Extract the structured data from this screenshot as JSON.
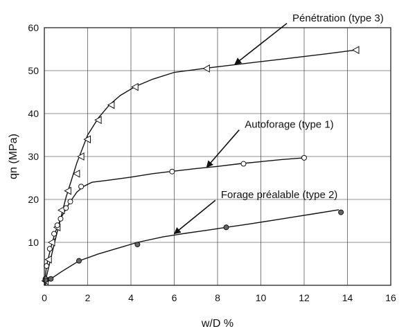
{
  "chart_data": {
    "type": "scatter",
    "title": "",
    "xlabel": "w/D %",
    "ylabel": "qn (MPa)",
    "xlim": [
      0,
      16
    ],
    "ylim": [
      0,
      60
    ],
    "x_ticks": [
      0,
      2,
      4,
      6,
      8,
      10,
      12,
      14,
      16
    ],
    "y_ticks": [
      10,
      20,
      30,
      40,
      50,
      60
    ],
    "grid": true,
    "legend": "none",
    "series": [
      {
        "name": "Pénétration (type 3)",
        "marker": "left-triangle",
        "points": [
          [
            0.05,
            1.0
          ],
          [
            0.2,
            6.0
          ],
          [
            0.35,
            10.0
          ],
          [
            0.6,
            13.5
          ],
          [
            0.8,
            17.5
          ],
          [
            1.1,
            22.0
          ],
          [
            1.5,
            26.0
          ],
          [
            1.7,
            30.0
          ],
          [
            2.0,
            34.0
          ],
          [
            2.5,
            38.5
          ],
          [
            3.1,
            42.0
          ],
          [
            4.2,
            46.2
          ],
          [
            7.5,
            50.5
          ],
          [
            14.4,
            54.8
          ]
        ],
        "curve": [
          [
            0,
            0
          ],
          [
            0.5,
            10.5
          ],
          [
            1.0,
            20.5
          ],
          [
            1.5,
            28.5
          ],
          [
            2.0,
            35.0
          ],
          [
            2.5,
            39.0
          ],
          [
            3.0,
            42.0
          ],
          [
            3.5,
            44.2
          ],
          [
            4.2,
            46.3
          ],
          [
            5.0,
            48.0
          ],
          [
            6.0,
            49.6
          ],
          [
            7.5,
            50.6
          ],
          [
            9.0,
            51.5
          ],
          [
            11.0,
            52.7
          ],
          [
            13.0,
            53.9
          ],
          [
            14.4,
            54.8
          ]
        ]
      },
      {
        "name": "Autoforage (type 1)",
        "marker": "circle",
        "points": [
          [
            0.05,
            1.5
          ],
          [
            0.1,
            4.5
          ],
          [
            0.25,
            8.5
          ],
          [
            0.45,
            12.0
          ],
          [
            0.6,
            14.0
          ],
          [
            0.75,
            15.5
          ],
          [
            1.0,
            18.0
          ],
          [
            1.2,
            19.5
          ],
          [
            1.7,
            23.0
          ],
          [
            5.9,
            26.5
          ],
          [
            9.2,
            28.3
          ],
          [
            12.0,
            29.7
          ]
        ],
        "curve": [
          [
            0,
            0
          ],
          [
            0.1,
            4.5
          ],
          [
            0.3,
            8.8
          ],
          [
            0.5,
            12.3
          ],
          [
            0.8,
            16.0
          ],
          [
            1.2,
            19.5
          ],
          [
            1.5,
            21.7
          ],
          [
            1.8,
            23.0
          ],
          [
            2.2,
            24.0
          ],
          [
            3.0,
            24.5
          ],
          [
            4.0,
            25.2
          ],
          [
            5.0,
            26.0
          ],
          [
            6.0,
            26.6
          ],
          [
            7.0,
            27.2
          ],
          [
            8.0,
            27.7
          ],
          [
            9.0,
            28.3
          ],
          [
            10.0,
            28.8
          ],
          [
            11.0,
            29.3
          ],
          [
            12.0,
            29.7
          ]
        ]
      },
      {
        "name": "Forage préalable (type 2)",
        "marker": "filled-circle",
        "points": [
          [
            0.05,
            1.2
          ],
          [
            0.3,
            1.5
          ],
          [
            1.6,
            5.7
          ],
          [
            4.3,
            9.5
          ],
          [
            8.4,
            13.5
          ],
          [
            13.7,
            17.0
          ]
        ],
        "curve": [
          [
            0,
            0
          ],
          [
            0.3,
            1.5
          ],
          [
            0.8,
            3.2
          ],
          [
            1.6,
            5.7
          ],
          [
            2.5,
            7.3
          ],
          [
            3.5,
            8.8
          ],
          [
            4.3,
            10.0
          ],
          [
            5.5,
            11.3
          ],
          [
            6.5,
            12.1
          ],
          [
            7.5,
            12.8
          ],
          [
            8.4,
            13.5
          ],
          [
            9.5,
            14.3
          ],
          [
            10.5,
            15.1
          ],
          [
            11.5,
            15.9
          ],
          [
            12.5,
            16.7
          ],
          [
            13.6,
            17.6
          ]
        ]
      }
    ],
    "annotations": [
      {
        "text": "Pénétration (type 3)",
        "series": 0,
        "arrow_tail": [
          11.2,
          61.0
        ],
        "arrow_head": [
          8.8,
          51.5
        ]
      },
      {
        "text": "Autoforage (type 1)",
        "series": 1,
        "arrow_tail": [
          9.0,
          36.2
        ],
        "arrow_head": [
          7.5,
          27.5
        ]
      },
      {
        "text": "Forage préalable (type 2)",
        "series": 2,
        "arrow_tail": [
          7.9,
          19.8
        ],
        "arrow_head": [
          6.0,
          12.0
        ]
      }
    ]
  }
}
